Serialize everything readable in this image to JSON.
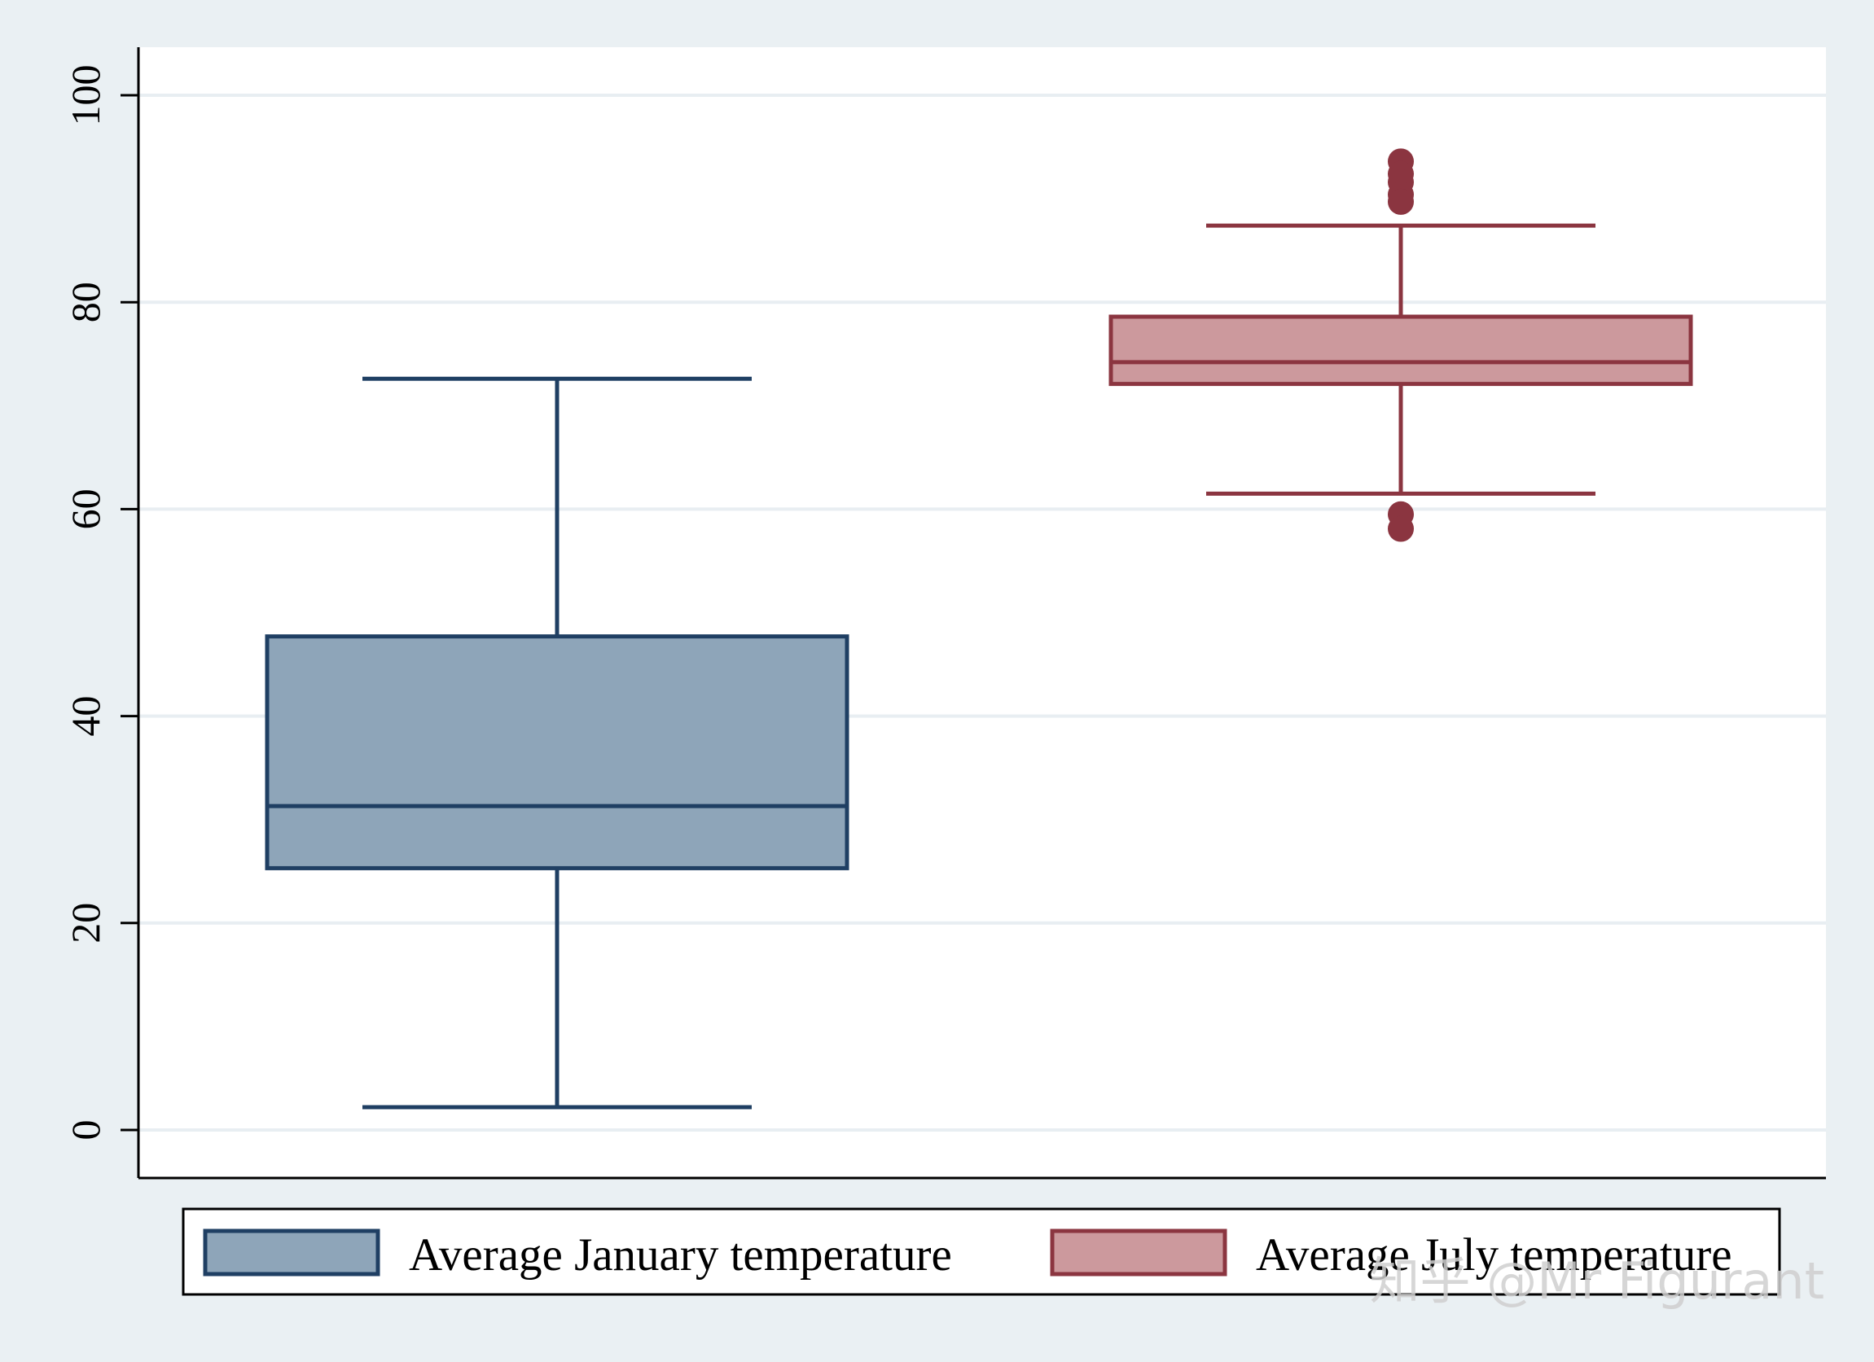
{
  "chart_data": {
    "type": "box",
    "title": "",
    "xlabel": "",
    "ylabel": "",
    "ylim": [
      0,
      100
    ],
    "yticks": [
      0,
      20,
      40,
      60,
      80,
      100
    ],
    "grid": true,
    "legend_position": "bottom",
    "series": [
      {
        "name": "Average January temperature",
        "color": "#8ea5b9",
        "edge_color": "#1f3f63",
        "whisker_low": 2.2,
        "q1": 25.3,
        "median": 31.3,
        "q3": 47.7,
        "whisker_high": 72.6,
        "outliers": []
      },
      {
        "name": "Average July temperature",
        "color": "#cc999d",
        "edge_color": "#8b3540",
        "whisker_low": 61.5,
        "q1": 72.1,
        "median": 74.2,
        "q3": 78.6,
        "whisker_high": 87.4,
        "outliers": [
          93.6,
          92.4,
          91.6,
          90.4,
          89.7,
          59.5,
          58.1
        ]
      }
    ]
  },
  "watermark": "知乎 @Mr Figurant"
}
